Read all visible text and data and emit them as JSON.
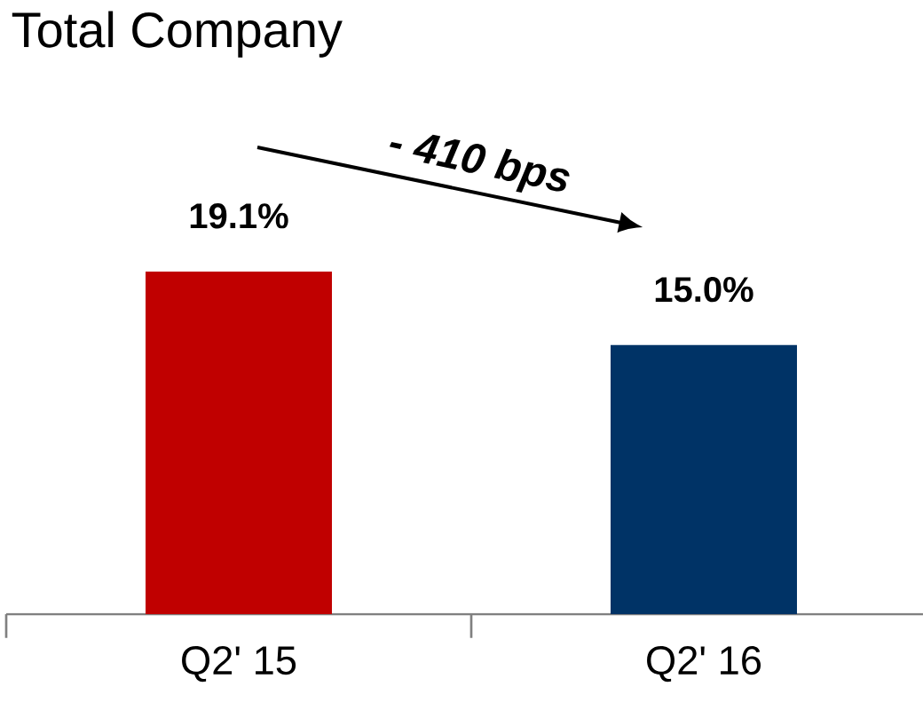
{
  "chart_data": {
    "type": "bar",
    "title": "Total Company",
    "categories": [
      "Q2' 15",
      "Q2' 16"
    ],
    "values": [
      19.1,
      15.0
    ],
    "colors": [
      "#c00000",
      "#003366"
    ],
    "value_labels": [
      "19.1%",
      "15.0%"
    ],
    "annotations": [
      "- 410 bps"
    ]
  }
}
